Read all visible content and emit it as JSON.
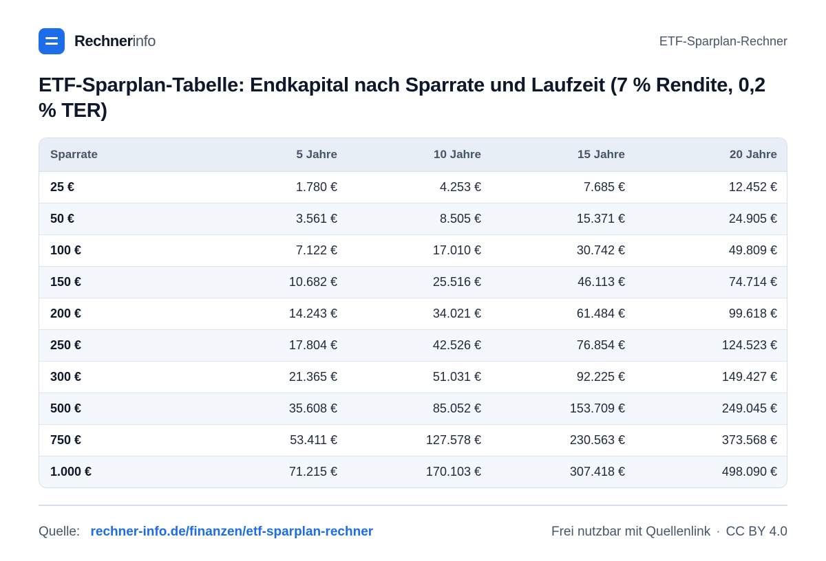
{
  "brand": {
    "name_strong": "Rechner",
    "name_light": "info"
  },
  "header": {
    "right_label": "ETF-Sparplan-Rechner"
  },
  "title": "ETF-Sparplan-Tabelle:  Endkapital nach Sparrate und Laufzeit (7 % Rendite, 0,2 % TER)",
  "table": {
    "columns": [
      "Sparrate",
      "5 Jahre",
      "10 Jahre",
      "15 Jahre",
      "20 Jahre"
    ],
    "rows": [
      [
        "25 €",
        "1.780 €",
        "4.253 €",
        "7.685 €",
        "12.452 €"
      ],
      [
        "50 €",
        "3.561 €",
        "8.505 €",
        "15.371 €",
        "24.905 €"
      ],
      [
        "100 €",
        "7.122 €",
        "17.010 €",
        "30.742 €",
        "49.809 €"
      ],
      [
        "150 €",
        "10.682 €",
        "25.516 €",
        "46.113 €",
        "74.714 €"
      ],
      [
        "200 €",
        "14.243 €",
        "34.021 €",
        "61.484 €",
        "99.618 €"
      ],
      [
        "250 €",
        "17.804 €",
        "42.526 €",
        "76.854 €",
        "124.523 €"
      ],
      [
        "300 €",
        "21.365 €",
        "51.031 €",
        "92.225 €",
        "149.427 €"
      ],
      [
        "500 €",
        "35.608 €",
        "85.052 €",
        "153.709 €",
        "249.045 €"
      ],
      [
        "750 €",
        "53.411 €",
        "127.578 €",
        "230.563 €",
        "373.568 €"
      ],
      [
        "1.000 €",
        "71.215 €",
        "170.103 €",
        "307.418 €",
        "498.090 €"
      ]
    ]
  },
  "footer": {
    "source_label": "Quelle:",
    "source_link": "rechner-info.de/finanzen/etf-sparplan-rechner",
    "license_text": "Frei nutzbar mit Quellenlink",
    "separator": "·",
    "license_name": "CC BY 4.0"
  },
  "colors": {
    "accent": "#1d6ce8",
    "header_bg": "#e8eef6",
    "zebra": "#f4f7fb",
    "border": "#d5dde8"
  },
  "icons": {
    "logo": "equals-icon"
  }
}
